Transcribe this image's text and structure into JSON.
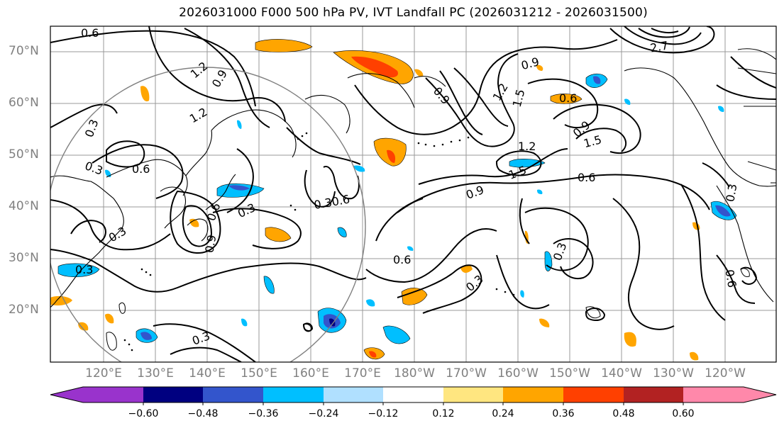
{
  "title": "2026031000 F000 500 hPa PV, IVT Landfall PC (2026031212 - 2026031500)",
  "lat_labels": [
    "70°N",
    "60°N",
    "50°N",
    "40°N",
    "30°N",
    "20°N"
  ],
  "lon_labels": [
    "120°E",
    "130°E",
    "140°E",
    "150°E",
    "160°E",
    "170°E",
    "180°W",
    "170°W",
    "160°W",
    "150°W",
    "140°W",
    "130°W",
    "120°W"
  ],
  "colorbar": {
    "ticks": [
      "−0.60",
      "−0.48",
      "−0.36",
      "−0.24",
      "−0.12",
      "0.12",
      "0.24",
      "0.36",
      "0.48",
      "0.60"
    ],
    "colors": [
      "#9933cc",
      "#000080",
      "#3355cc",
      "#00bfff",
      "#b0e0ff",
      "#ffffff",
      "#ffe680",
      "#ffa500",
      "#ff4000",
      "#b22222",
      "#ff88aa"
    ]
  },
  "contour_labels": [
    "0.6",
    "1.2",
    "0.9",
    "0.3",
    "1.2",
    "0.3",
    "0.6",
    "0.3",
    "0.6",
    "0.9",
    "0.3",
    "0.3",
    "0.30.6",
    "0.6",
    "0.3",
    "0.9",
    "1.5",
    "0.9",
    "1.2",
    "1.5",
    "1.2",
    "1.5",
    "0.6",
    "0.9",
    "2.7",
    "0.6",
    "0.3",
    "0.3",
    "0.3",
    "0.6",
    "0.9"
  ]
}
